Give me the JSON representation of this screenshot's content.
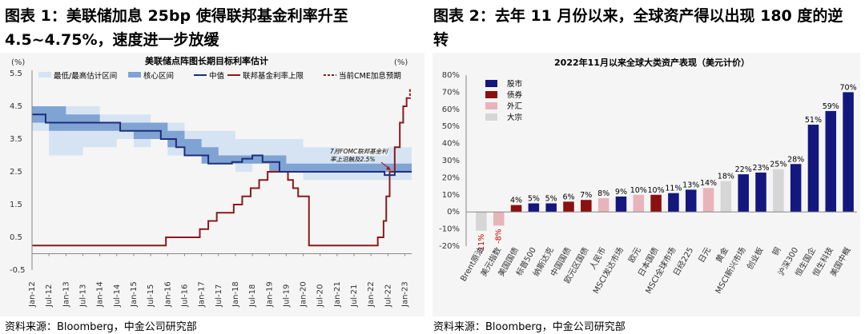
{
  "left": {
    "heading": "图表 1：美联储加息 25bp 使得联邦基金利率升至 4.5~4.75%，速度进一步放缓",
    "source": "资料来源：Bloomberg，中金公司研究部",
    "chart_data": {
      "type": "line",
      "title": "美联储点阵图长期目标利率估计",
      "unit_left": "(%)",
      "unit_right": "(%)",
      "ylim": [
        -0.5,
        5.5
      ],
      "yticks": [
        "5.5",
        "4.5",
        "3.5",
        "2.5",
        "1.5",
        "0.5",
        "-0.5"
      ],
      "xticks": [
        "Jan-12",
        "Jul-12",
        "Jan-13",
        "Jul-13",
        "Jan-14",
        "Jul-14",
        "Jan-15",
        "Jul-15",
        "Jan-16",
        "Jul-16",
        "Jan-17",
        "Jul-17",
        "Jan-18",
        "Jul-18",
        "Jan-19",
        "Jul-19",
        "Jan-20",
        "Jul-20",
        "Jan-21",
        "Jul-21",
        "Jan-22",
        "Jul-22",
        "Jan-23"
      ],
      "legend": [
        "最低/最高估计区间",
        "核心区间",
        "中值",
        "联邦基金利率上限",
        "当前CME加息预期"
      ],
      "annotation": [
        "7月FOMC联邦基金利",
        "率上沿触及2.5%"
      ],
      "colors": {
        "range": "#d6e3f2",
        "core": "#7fa3d3",
        "median": "#1f2d7b",
        "fedfunds": "#8b1a1a",
        "cme": "#8b1a1a"
      },
      "series": [
        {
          "name": "最低/最高估计区间",
          "x": [
            2012.0,
            2012.5,
            2013.0,
            2013.5,
            2014.0,
            2014.5,
            2015.0,
            2015.5,
            2016.0,
            2016.5,
            2017.0,
            2017.5,
            2018.0,
            2018.5,
            2019.0,
            2019.5,
            2020.0,
            2020.5,
            2021.0,
            2021.5,
            2022.0,
            2022.5,
            2023.0
          ],
          "low": [
            3.75,
            3.0,
            3.0,
            3.25,
            3.25,
            3.5,
            3.25,
            3.5,
            3.0,
            3.0,
            2.75,
            2.75,
            2.5,
            2.75,
            2.5,
            2.5,
            2.25,
            2.25,
            2.25,
            2.25,
            2.25,
            2.25,
            2.25
          ],
          "high": [
            4.5,
            4.5,
            4.5,
            4.5,
            4.25,
            4.25,
            4.25,
            4.0,
            4.0,
            3.75,
            3.75,
            3.75,
            3.5,
            3.5,
            3.5,
            3.5,
            3.25,
            3.25,
            3.0,
            3.0,
            3.0,
            3.25,
            3.25
          ]
        },
        {
          "name": "核心区间",
          "x": [
            2012.0,
            2012.5,
            2013.0,
            2013.5,
            2014.0,
            2014.5,
            2015.0,
            2015.5,
            2016.0,
            2016.5,
            2017.0,
            2017.5,
            2018.0,
            2018.5,
            2019.0,
            2019.5,
            2020.0,
            2020.5,
            2021.0,
            2021.5,
            2022.0,
            2022.5,
            2023.0
          ],
          "low": [
            4.0,
            3.75,
            3.75,
            3.75,
            3.75,
            3.75,
            3.5,
            3.5,
            3.25,
            3.0,
            2.75,
            2.75,
            2.75,
            2.75,
            2.5,
            2.5,
            2.5,
            2.5,
            2.5,
            2.5,
            2.5,
            2.5,
            2.5
          ],
          "high": [
            4.5,
            4.5,
            4.25,
            4.25,
            4.0,
            4.0,
            4.0,
            4.0,
            3.75,
            3.5,
            3.25,
            3.0,
            3.0,
            3.0,
            3.0,
            2.75,
            2.75,
            2.75,
            2.75,
            2.75,
            2.75,
            2.75,
            2.75
          ]
        },
        {
          "name": "中值",
          "x": [
            2012.0,
            2012.4,
            2012.4,
            2013.0,
            2013.0,
            2014.6,
            2014.6,
            2015.2,
            2015.2,
            2015.8,
            2015.8,
            2016.25,
            2016.25,
            2016.5,
            2016.5,
            2016.8,
            2016.8,
            2017.2,
            2017.2,
            2017.9,
            2017.9,
            2018.2,
            2018.2,
            2018.5,
            2018.5,
            2018.8,
            2018.8,
            2019.3,
            2019.3,
            2019.6,
            2019.6,
            2022.4,
            2022.4,
            2022.7,
            2022.7,
            2023.2
          ],
          "y": [
            4.25,
            4.25,
            4.0,
            4.0,
            4.0,
            4.0,
            3.75,
            3.75,
            3.75,
            3.75,
            3.5,
            3.5,
            3.25,
            3.25,
            3.0,
            3.0,
            3.0,
            3.0,
            2.75,
            2.75,
            2.8,
            2.8,
            2.9,
            2.9,
            3.0,
            3.0,
            2.8,
            2.8,
            2.5,
            2.5,
            2.5,
            2.5,
            2.4,
            2.4,
            2.5,
            2.5
          ]
        },
        {
          "name": "联邦基金利率上限",
          "x": [
            2012.0,
            2015.95,
            2015.95,
            2016.95,
            2016.95,
            2017.2,
            2017.2,
            2017.45,
            2017.45,
            2017.95,
            2017.95,
            2018.2,
            2018.2,
            2018.45,
            2018.45,
            2018.7,
            2018.7,
            2018.95,
            2018.95,
            2019.55,
            2019.55,
            2019.7,
            2019.7,
            2019.85,
            2019.85,
            2020.17,
            2020.17,
            2022.2,
            2022.2,
            2022.37,
            2022.37,
            2022.45,
            2022.45,
            2022.55,
            2022.55,
            2022.7,
            2022.7,
            2022.85,
            2022.85,
            2022.95,
            2022.95,
            2023.05,
            2023.05,
            2023.1
          ],
          "y": [
            0.25,
            0.25,
            0.5,
            0.5,
            0.75,
            0.75,
            1.0,
            1.0,
            1.25,
            1.25,
            1.5,
            1.5,
            1.75,
            1.75,
            2.0,
            2.0,
            2.25,
            2.25,
            2.5,
            2.5,
            2.25,
            2.25,
            2.0,
            2.0,
            1.75,
            1.75,
            0.25,
            0.25,
            0.5,
            0.5,
            1.0,
            1.0,
            1.75,
            1.75,
            2.5,
            2.5,
            3.25,
            3.25,
            4.0,
            4.0,
            4.5,
            4.5,
            4.75,
            4.75
          ]
        },
        {
          "name": "当前CME加息预期",
          "x": [
            2023.1,
            2023.15,
            2023.15,
            2023.2
          ],
          "y": [
            4.75,
            4.75,
            5.0,
            5.0
          ]
        }
      ]
    }
  },
  "right": {
    "heading": "图表 2：去年 11 月份以来，全球资产得以出现 180 度的逆转",
    "source": "资料来源：Bloomberg，中金公司研究部",
    "chart_data": {
      "type": "bar",
      "title": "2022年11月以来全球大类资产表现（美元计价）",
      "ylim": [
        -20,
        80
      ],
      "yticks": [
        "80%",
        "70%",
        "60%",
        "50%",
        "40%",
        "30%",
        "20%",
        "10%",
        "0%",
        "-10%",
        "-20%"
      ],
      "legend": [
        {
          "label": "股市",
          "color": "#14177e"
        },
        {
          "label": "债券",
          "color": "#8b1010"
        },
        {
          "label": "外汇",
          "color": "#e8b4bc"
        },
        {
          "label": "大宗",
          "color": "#d6d6d6"
        }
      ],
      "categories": [
        "Brent原油",
        "美元指数",
        "美国国债",
        "标普500",
        "纳斯达克",
        "中国国债",
        "欧元区国债",
        "人民币",
        "MSCI发达市场",
        "欧元",
        "日本国债",
        "MSCI全球市场",
        "日经225",
        "日元",
        "黄金",
        "MSCI新兴市场",
        "创业板",
        "铜",
        "沪深300",
        "恒生国企",
        "恒生科技",
        "美国中概"
      ],
      "values": [
        -11,
        -8,
        4,
        5,
        5,
        6,
        7,
        8,
        9,
        10,
        10,
        11,
        13,
        14,
        18,
        22,
        23,
        25,
        28,
        51,
        59,
        70
      ],
      "labels": [
        "-11%",
        "-8%",
        "4%",
        "5%",
        "5%",
        "6%",
        "7%",
        "8%",
        "9%",
        "10%",
        "10%",
        "11%",
        "13%",
        "14%",
        "18%",
        "22%",
        "23%",
        "25%",
        "28%",
        "51%",
        "59%",
        "70%"
      ],
      "classes": [
        "大宗",
        "外汇",
        "债券",
        "股市",
        "股市",
        "债券",
        "债券",
        "外汇",
        "股市",
        "外汇",
        "债券",
        "股市",
        "股市",
        "外汇",
        "大宗",
        "股市",
        "股市",
        "大宗",
        "股市",
        "股市",
        "股市",
        "股市"
      ]
    }
  }
}
